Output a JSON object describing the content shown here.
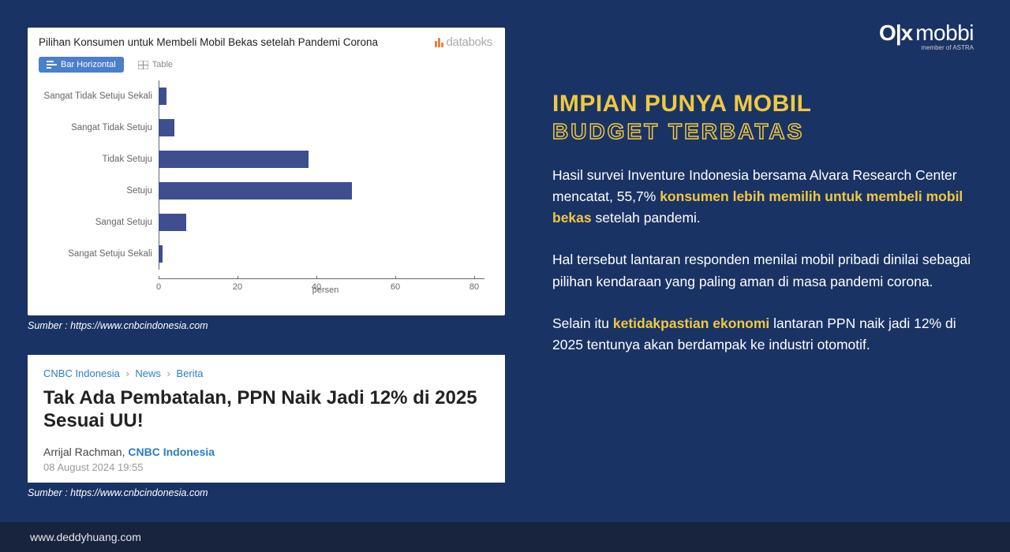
{
  "chart": {
    "title": "Pilihan Konsumen untuk Membeli Mobil Bekas setelah Pandemi Corona",
    "brand_text": "databoks",
    "tab_bar": "Bar Horizontal",
    "tab_table": "Table",
    "type": "bar-horizontal",
    "categories": [
      "Sangat Tidak Setuju Sekali",
      "Sangat Tidak Setuju",
      "Tidak Setuju",
      "Setuju",
      "Sangat Setuju",
      "Sangat Setuju Sekali"
    ],
    "values": [
      2,
      4,
      38,
      49,
      7,
      1
    ],
    "bar_color": "#3e4e8e",
    "xlim": [
      0,
      80
    ],
    "xtick_step": 20,
    "x_axis_title": "persen",
    "background_color": "#ffffff",
    "label_fontsize": 11.5,
    "tick_fontsize": 11
  },
  "source1": "Sumber : https://www.cnbcindonesia.com",
  "news": {
    "breadcrumb": [
      "CNBC Indonesia",
      "News",
      "Berita"
    ],
    "headline": "Tak Ada Pembatalan, PPN Naik Jadi 12% di 2025 Sesuai UU!",
    "author": "Arrijal Rachman,",
    "source": "CNBC Indonesia",
    "date": "08 August 2024 19:55"
  },
  "source2": "Sumber : https://www.cnbcindonesia.com",
  "brand": {
    "olx": "O|x",
    "mobbi": "mobbi",
    "astra": "member of ASTRA"
  },
  "heading": {
    "line1": "IMPIAN PUNYA MOBIL",
    "line2": "BUDGET TERBATAS"
  },
  "body": {
    "p1_a": "Hasil survei Inventure Indonesia bersama Alvara Research Center mencatat, 55,7% ",
    "p1_hl": "konsumen lebih memilih untuk membeli mobil bekas",
    "p1_b": " setelah pandemi.",
    "p2": "Hal tersebut lantaran responden menilai mobil pribadi dinilai sebagai pilihan kendaraan yang paling aman di masa pandemi corona.",
    "p3_a": "Selain itu ",
    "p3_hl": "ketidakpastian ekonomi",
    "p3_b": " lantaran PPN naik jadi 12% di 2025 tentunya akan berdampak ke industri otomotif."
  },
  "footer": "www.deddyhuang.com",
  "colors": {
    "page_bg": "#1a3365",
    "footer_bg": "#18243e",
    "accent_yellow": "#f0c840",
    "bar_color": "#3e4e8e",
    "tab_active_bg": "#4a7fc9"
  }
}
